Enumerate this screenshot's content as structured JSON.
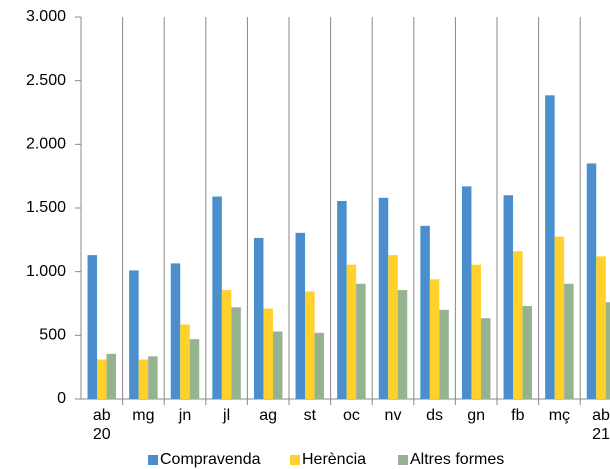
{
  "chart_data": {
    "type": "bar",
    "categories": [
      "ab\n20",
      "mg",
      "jn",
      "jl",
      "ag",
      "st",
      "oc",
      "nv",
      "ds",
      "gn",
      "fb",
      "mç",
      "ab\n21"
    ],
    "series": [
      {
        "name": "Compravenda",
        "color": "#4a8fcc",
        "values": [
          1130,
          1010,
          1065,
          1590,
          1265,
          1305,
          1555,
          1580,
          1360,
          1670,
          1600,
          2385,
          1850
        ]
      },
      {
        "name": "Herència",
        "color": "#ffd12a",
        "values": [
          310,
          310,
          585,
          855,
          710,
          845,
          1055,
          1130,
          940,
          1055,
          1160,
          1275,
          1120
        ]
      },
      {
        "name": "Altres formes",
        "color": "#93b391",
        "values": [
          355,
          335,
          470,
          720,
          530,
          520,
          905,
          855,
          700,
          635,
          730,
          905,
          760
        ]
      }
    ],
    "ylim": [
      0,
      3000
    ],
    "yticks": [
      0,
      500,
      {
        "value": 1000,
        "label": "1.000"
      },
      {
        "value": 1500,
        "label": "1.500"
      },
      {
        "value": 2000,
        "label": "2.000"
      },
      {
        "value": 2500,
        "label": "2.500"
      },
      {
        "value": 3000,
        "label": "3.000"
      }
    ]
  }
}
